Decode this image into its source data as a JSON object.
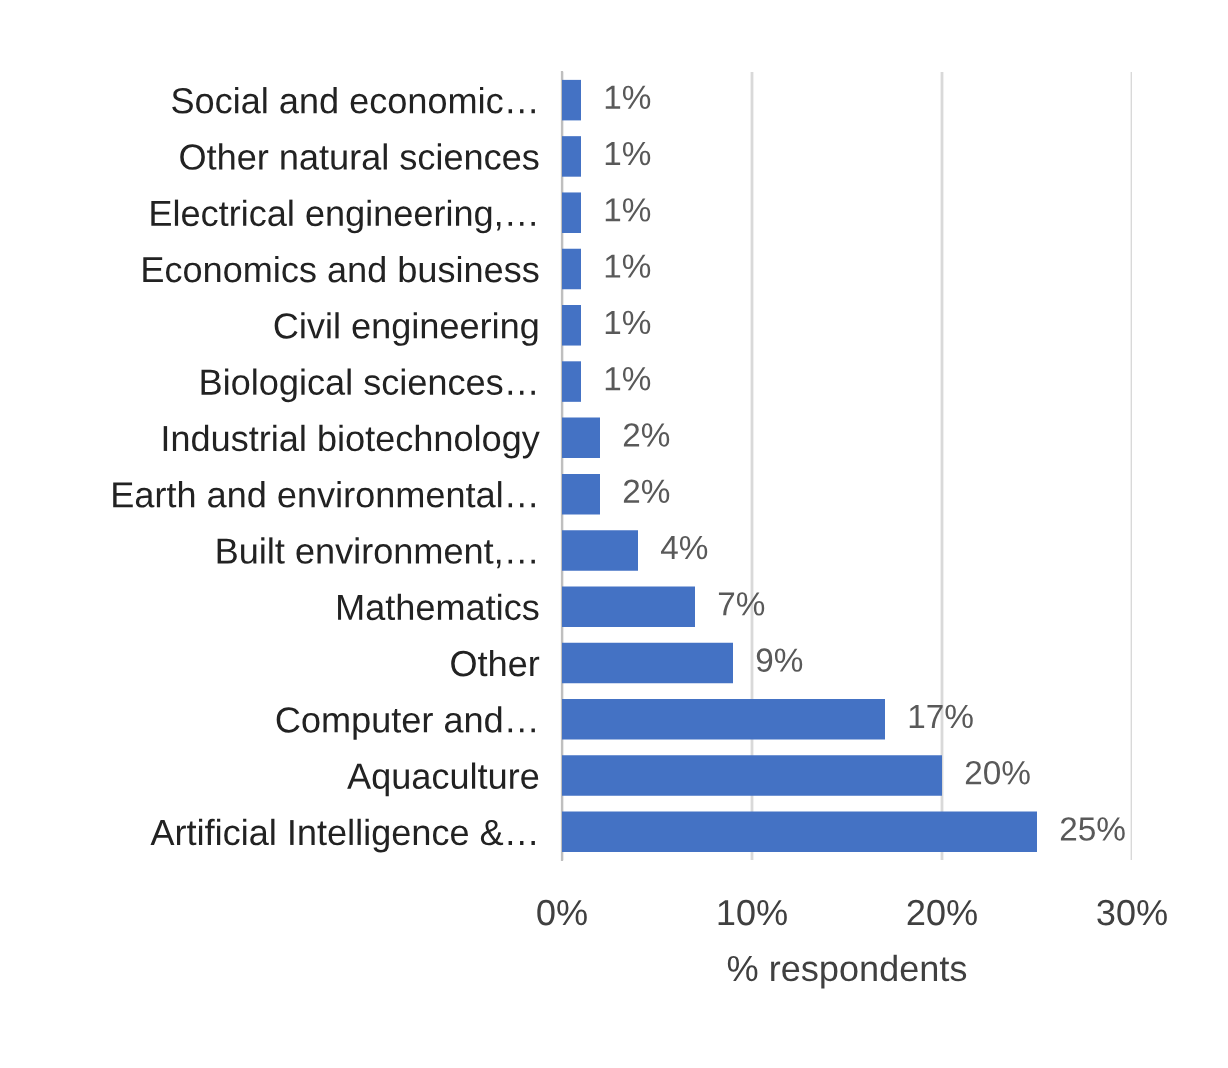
{
  "chart_data": {
    "type": "bar",
    "orientation": "horizontal",
    "xlabel": "% respondents",
    "categories": [
      "Social and economic…",
      "Other natural sciences",
      "Electrical engineering,…",
      "Economics and business",
      "Civil engineering",
      "Biological sciences…",
      "Industrial biotechnology",
      "Earth and environmental…",
      "Built environment,…",
      "Mathematics",
      "Other",
      "Computer and…",
      "Aquaculture",
      "Artificial Intelligence &…"
    ],
    "values": [
      1,
      1,
      1,
      1,
      1,
      1,
      2,
      2,
      4,
      7,
      9,
      17,
      20,
      25
    ],
    "value_labels": [
      "1%",
      "1%",
      "1%",
      "1%",
      "1%",
      "1%",
      "2%",
      "2%",
      "4%",
      "7%",
      "9%",
      "17%",
      "20%",
      "25%"
    ],
    "color": "#4472c4",
    "xlim": [
      0,
      30
    ],
    "xticks": [
      {
        "value": 0,
        "label": "0%"
      },
      {
        "value": 10,
        "label": "10%"
      },
      {
        "value": 20,
        "label": "20%"
      },
      {
        "value": 30,
        "label": "30%"
      }
    ],
    "grid": "x",
    "legend": false
  }
}
